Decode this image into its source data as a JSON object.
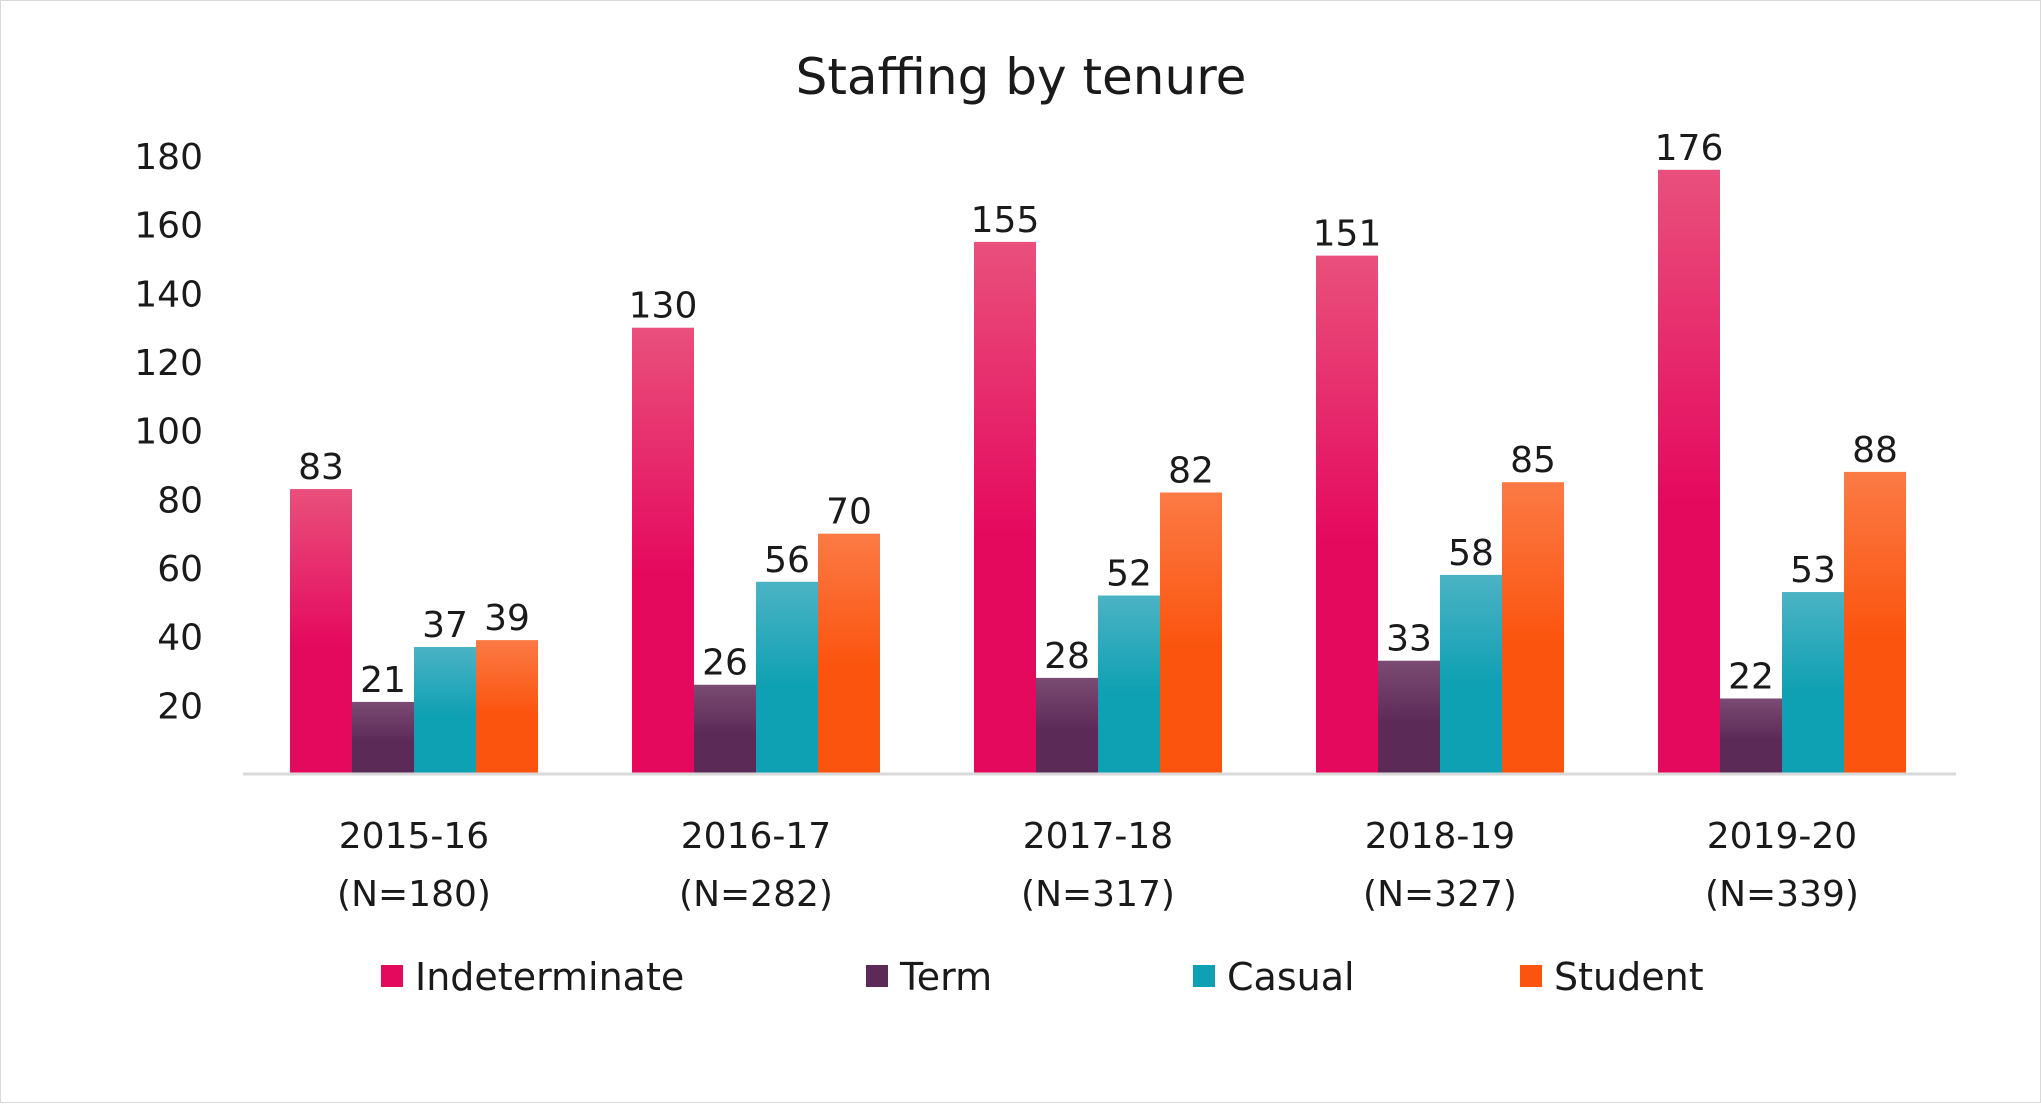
{
  "chart_data": {
    "type": "bar",
    "title": "Staffing by tenure",
    "xlabel": "",
    "ylabel": "",
    "ylim": [
      0,
      180
    ],
    "yticks": [
      20,
      40,
      60,
      80,
      100,
      120,
      140,
      160,
      180
    ],
    "categories": [
      [
        "2015-16",
        "(N=180)"
      ],
      [
        "2016-17",
        "(N=282)"
      ],
      [
        "2017-18",
        "(N=317)"
      ],
      [
        "2018-19",
        "(N=327)"
      ],
      [
        "2019-20",
        "(N=339)"
      ]
    ],
    "series": [
      {
        "name": "Indeterminate",
        "values": [
          83,
          130,
          155,
          151,
          176
        ],
        "color_top": "#e9507c",
        "color_bottom": "#e5095e"
      },
      {
        "name": "Term",
        "values": [
          21,
          26,
          28,
          33,
          22
        ],
        "color_top": "#7a4b73",
        "color_bottom": "#5c2a57"
      },
      {
        "name": "Casual",
        "values": [
          37,
          56,
          52,
          58,
          53
        ],
        "color_top": "#4bb3c4",
        "color_bottom": "#0ea0b3"
      },
      {
        "name": "Student",
        "values": [
          39,
          70,
          82,
          85,
          88
        ],
        "color_top": "#fb7a45",
        "color_bottom": "#fb540e"
      }
    ],
    "grid": false,
    "legend_position": "bottom"
  }
}
